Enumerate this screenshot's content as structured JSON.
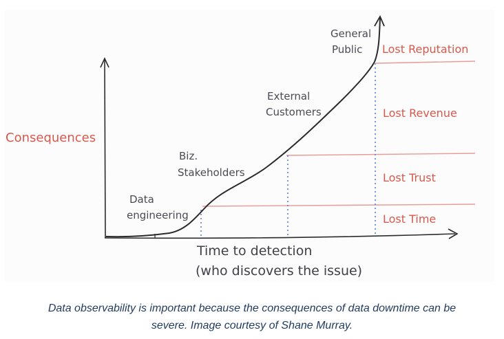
{
  "diagram": {
    "y_axis_label": "Consequences",
    "x_axis_label_line1": "Time to detection",
    "x_axis_label_line2": "(who discovers the issue)",
    "stakeholders": [
      {
        "line1": "Data",
        "line2": "engineering"
      },
      {
        "line1": "Biz.",
        "line2": "Stakeholders"
      },
      {
        "line1": "External",
        "line2": "Customers"
      },
      {
        "line1": "General",
        "line2": "Public"
      }
    ],
    "consequence_levels": [
      "Lost Time",
      "Lost Trust",
      "Lost Revenue",
      "Lost Reputation"
    ],
    "colors": {
      "ink": "#2b2b2b",
      "accent_red": "#d9584c",
      "guide_line": "#e89a94",
      "dotted_blue": "#5a7fd6",
      "caption": "#1f3a5f"
    }
  },
  "caption": {
    "line1": "Data observability is important because the consequences of data downtime can be",
    "line2": "severe. Image courtesy of Shane Murray."
  }
}
